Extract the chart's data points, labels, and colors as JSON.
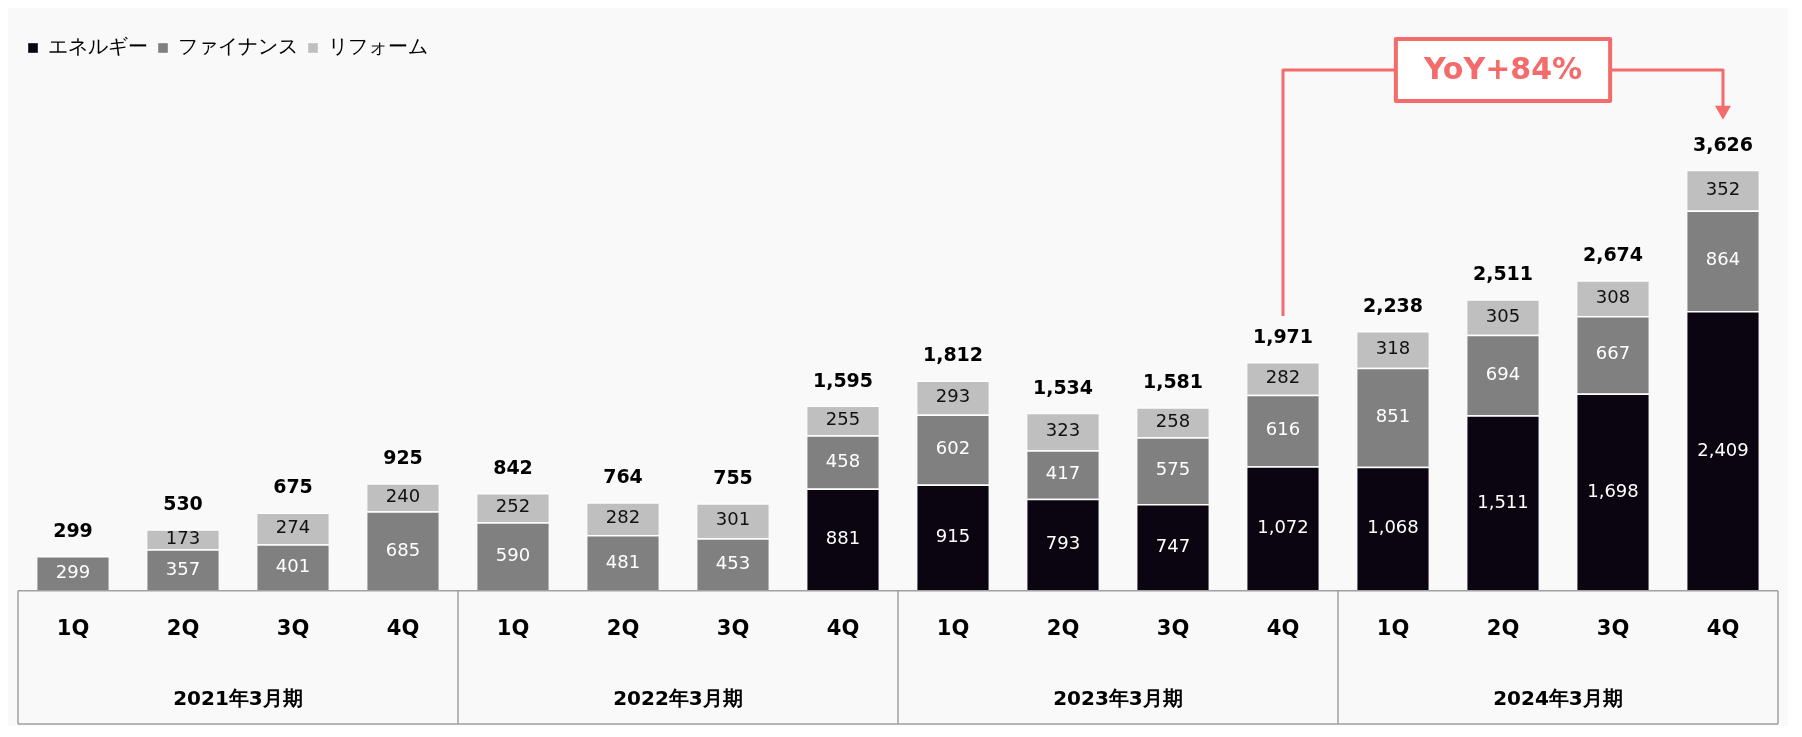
{
  "chart_data": {
    "type": "bar",
    "stacked": true,
    "categories": [
      "1Q",
      "2Q",
      "3Q",
      "4Q",
      "1Q",
      "2Q",
      "3Q",
      "4Q",
      "1Q",
      "2Q",
      "3Q",
      "4Q",
      "1Q",
      "2Q",
      "3Q",
      "4Q"
    ],
    "series": [
      {
        "name": "エネルギー",
        "color": "#0a0510",
        "values": [
          null,
          null,
          null,
          null,
          null,
          null,
          null,
          881,
          915,
          793,
          747,
          1072,
          1068,
          1511,
          1698,
          2409
        ],
        "value_labels": [
          null,
          null,
          null,
          null,
          null,
          null,
          null,
          "881",
          "915",
          "793",
          "747",
          "1,072",
          "1,068",
          "1,511",
          "1,698",
          "2,409"
        ]
      },
      {
        "name": "ファイナンス",
        "color": "#808080",
        "values": [
          299,
          357,
          401,
          685,
          590,
          481,
          453,
          458,
          602,
          417,
          575,
          616,
          851,
          694,
          667,
          864
        ]
      },
      {
        "name": "リフォーム",
        "color": "#bfbfbf",
        "values": [
          null,
          173,
          274,
          240,
          252,
          282,
          301,
          255,
          293,
          323,
          258,
          282,
          318,
          305,
          308,
          352
        ]
      }
    ],
    "totals": [
      "299",
      "530",
      "675",
      "925",
      "842",
      "764",
      "755",
      "1,595",
      "1,812",
      "1,534",
      "1,581",
      "1,971",
      "2,238",
      "2,511",
      "2,674",
      "3,626"
    ],
    "data_labels": true,
    "legend": "top left",
    "grid": false,
    "annotations": [
      "2021年3月期",
      "2022年3月期",
      "2023年3月期",
      "2024年3月期",
      "YoY+84%"
    ]
  }
}
